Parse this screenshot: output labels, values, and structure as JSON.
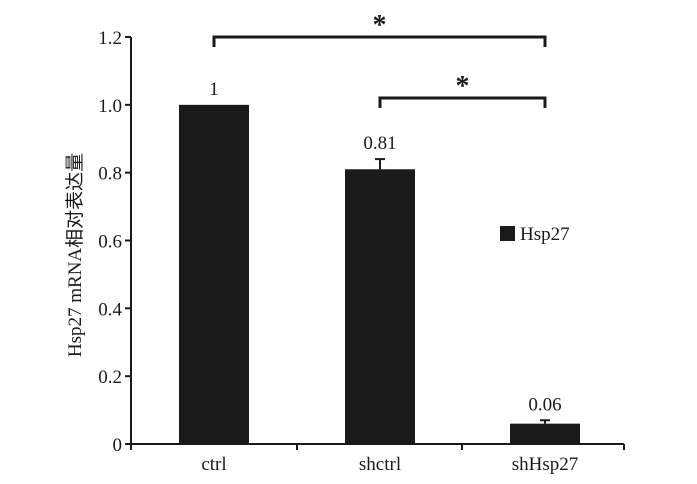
{
  "chart_data": {
    "type": "bar",
    "categories": [
      "ctrl",
      "shctrl",
      "shHsp27"
    ],
    "series": [
      {
        "name": "Hsp27",
        "values": [
          1.0,
          0.81,
          0.06
        ],
        "errors": [
          0.0,
          0.03,
          0.01
        ],
        "data_labels": [
          "1",
          "0.81",
          "0.06"
        ]
      }
    ],
    "ylabel": "Hsp27 mRNA相对表达量",
    "xlabel": "",
    "ylim": [
      0,
      1.2
    ],
    "yticks": [
      0,
      0.2,
      0.4,
      0.6,
      0.8,
      1.0,
      1.2
    ],
    "ytick_labels": [
      "0",
      "0.2",
      "0.4",
      "0.6",
      "0.8",
      "1.0",
      "1.2"
    ],
    "legend": {
      "position": "right",
      "entries": [
        "Hsp27"
      ]
    },
    "grid": false,
    "bar_color": "#1a1a1a",
    "significance": [
      {
        "from": "ctrl",
        "to": "shHsp27",
        "label": "*"
      },
      {
        "from": "shctrl",
        "to": "shHsp27",
        "label": "*"
      }
    ]
  }
}
